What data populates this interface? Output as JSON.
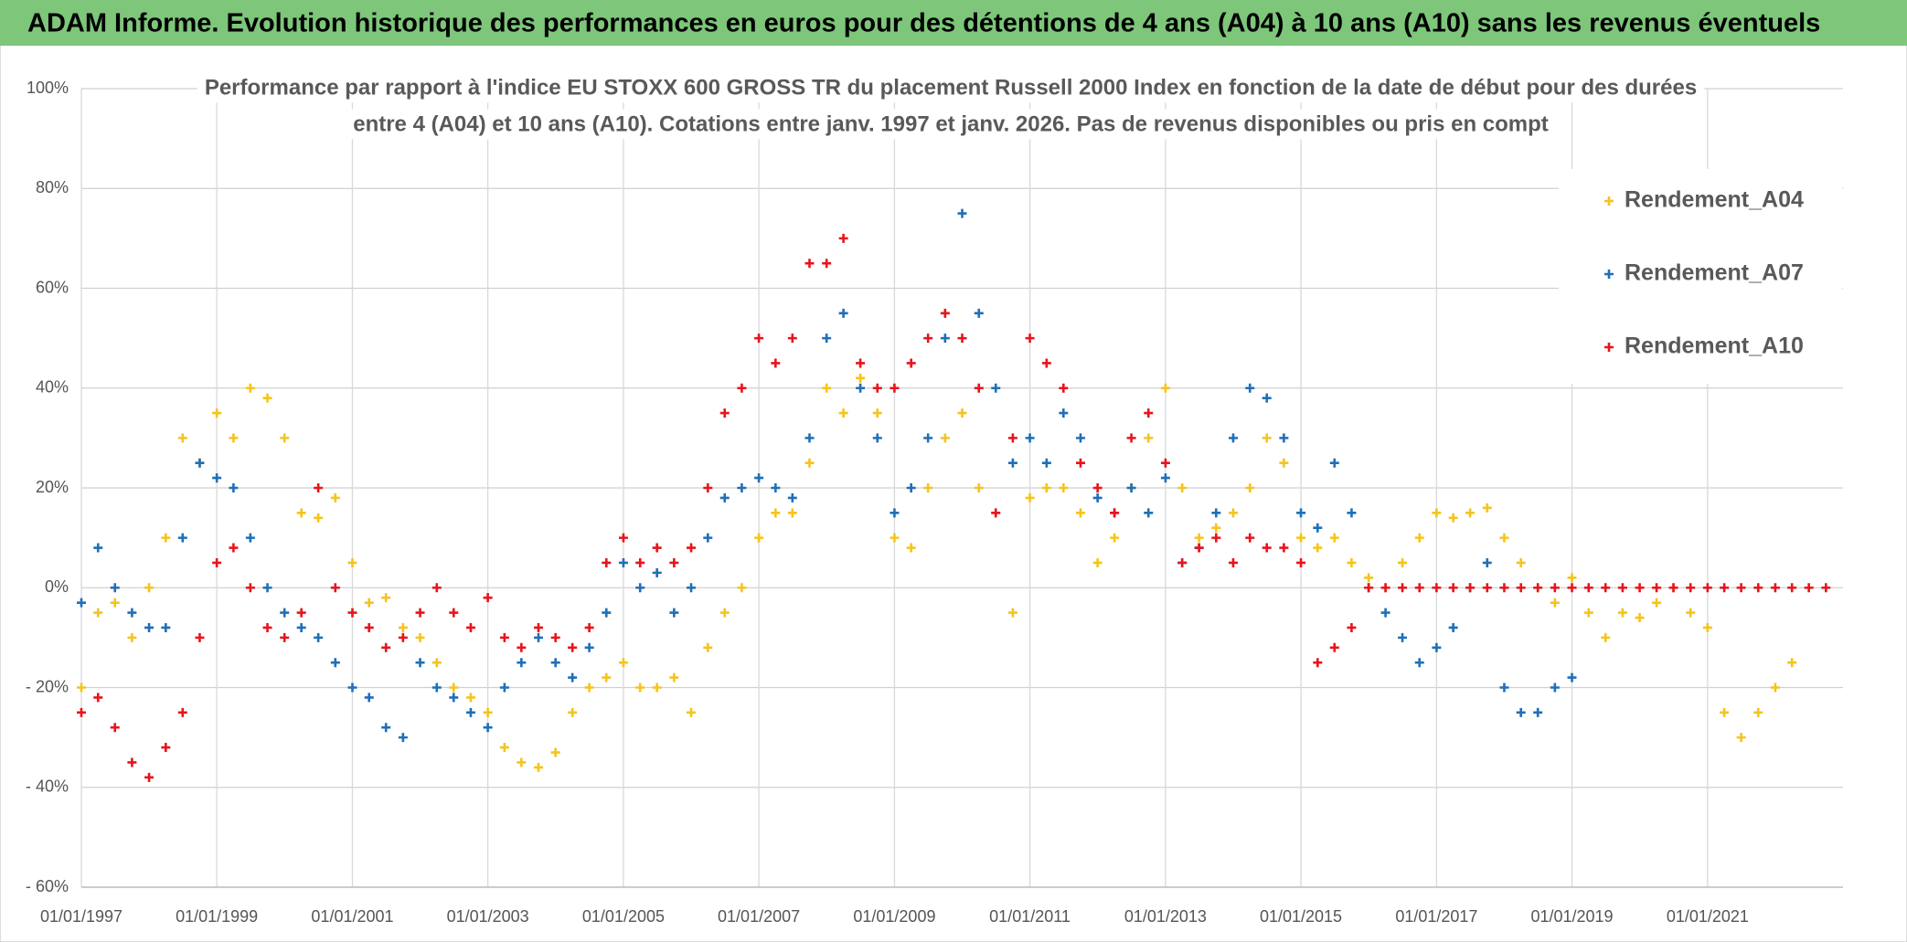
{
  "chart_data": {
    "type": "scatter",
    "title": "ADAM Informe. Evolution historique des performances en euros pour des détentions de 4 ans (A04) à 10 ans (A10) sans les revenus éventuels",
    "subtitle": [
      "Performance par rapport à l'indice EU STOXX 600 GROSS TR  du placement Russell 2000 Index en fonction de la date de début pour des durées",
      "entre 4 (A04) et 10 ans (A10). Cotations entre janv. 1997 et janv. 2026. Pas de revenus disponibles ou pris en compt"
    ],
    "x": [
      "1997-01-01",
      "1997-04-01",
      "1997-07-01",
      "1997-10-01",
      "1998-01-01",
      "1998-04-01",
      "1998-07-01",
      "1998-10-01",
      "1999-01-01",
      "1999-04-01",
      "1999-07-01",
      "1999-10-01",
      "2000-01-01",
      "2000-04-01",
      "2000-07-01",
      "2000-10-01",
      "2001-01-01",
      "2001-04-01",
      "2001-07-01",
      "2001-10-01",
      "2002-01-01",
      "2002-04-01",
      "2002-07-01",
      "2002-10-01",
      "2003-01-01",
      "2003-04-01",
      "2003-07-01",
      "2003-10-01",
      "2004-01-01",
      "2004-04-01",
      "2004-07-01",
      "2004-10-01",
      "2005-01-01",
      "2005-04-01",
      "2005-07-01",
      "2005-10-01",
      "2006-01-01",
      "2006-04-01",
      "2006-07-01",
      "2006-10-01",
      "2007-01-01",
      "2007-04-01",
      "2007-07-01",
      "2007-10-01",
      "2008-01-01",
      "2008-04-01",
      "2008-07-01",
      "2008-10-01",
      "2009-01-01",
      "2009-04-01",
      "2009-07-01",
      "2009-10-01",
      "2010-01-01",
      "2010-04-01",
      "2010-07-01",
      "2010-10-01",
      "2011-01-01",
      "2011-04-01",
      "2011-07-01",
      "2011-10-01",
      "2012-01-01",
      "2012-04-01",
      "2012-07-01",
      "2012-10-01",
      "2013-01-01",
      "2013-04-01",
      "2013-07-01",
      "2013-10-01",
      "2014-01-01",
      "2014-04-01",
      "2014-07-01",
      "2014-10-01",
      "2015-01-01",
      "2015-04-01",
      "2015-07-01",
      "2015-10-01",
      "2016-01-01",
      "2016-04-01",
      "2016-07-01",
      "2016-10-01",
      "2017-01-01",
      "2017-04-01",
      "2017-07-01",
      "2017-10-01",
      "2018-01-01",
      "2018-04-01",
      "2018-07-01",
      "2018-10-01",
      "2019-01-01",
      "2019-04-01",
      "2019-07-01",
      "2019-10-01",
      "2020-01-01",
      "2020-04-01",
      "2020-07-01",
      "2020-10-01",
      "2021-01-01",
      "2021-04-01",
      "2021-07-01",
      "2021-10-01",
      "2022-01-01",
      "2022-04-01",
      "2022-07-01",
      "2022-10-01"
    ],
    "series": [
      {
        "name": "Rendement_A04",
        "color": "#f5c41c",
        "values": [
          -20,
          -5,
          -3,
          -10,
          0,
          10,
          30,
          25,
          35,
          30,
          40,
          38,
          30,
          15,
          14,
          18,
          5,
          -3,
          -2,
          -8,
          -10,
          -15,
          -20,
          -22,
          -25,
          -32,
          -35,
          -36,
          -33,
          -25,
          -20,
          -18,
          -15,
          -20,
          -20,
          -18,
          -25,
          -12,
          -5,
          0,
          10,
          15,
          15,
          25,
          40,
          35,
          42,
          35,
          10,
          8,
          20,
          30,
          35,
          20,
          15,
          -5,
          18,
          20,
          20,
          15,
          5,
          10,
          20,
          30,
          40,
          20,
          10,
          12,
          15,
          20,
          30,
          25,
          10,
          8,
          10,
          5,
          2,
          0,
          5,
          10,
          15,
          14,
          15,
          16,
          10,
          5,
          0,
          -3,
          2,
          -5,
          -10,
          -5,
          -6,
          -3,
          0,
          -5,
          -8,
          -25,
          -30,
          -25,
          -20,
          -15,
          null,
          null
        ]
      },
      {
        "name": "Rendement_A07",
        "color": "#1f6fb8",
        "values": [
          -3,
          8,
          0,
          -5,
          -8,
          -8,
          10,
          25,
          22,
          20,
          10,
          0,
          -5,
          -8,
          -10,
          -15,
          -20,
          -22,
          -28,
          -30,
          -15,
          -20,
          -22,
          -25,
          -28,
          -20,
          -15,
          -10,
          -15,
          -18,
          -12,
          -5,
          5,
          0,
          3,
          -5,
          0,
          10,
          18,
          20,
          22,
          20,
          18,
          30,
          50,
          55,
          40,
          30,
          15,
          20,
          30,
          50,
          75,
          55,
          40,
          25,
          30,
          25,
          35,
          30,
          18,
          15,
          20,
          15,
          22,
          5,
          8,
          15,
          30,
          40,
          38,
          30,
          15,
          12,
          25,
          15,
          0,
          -5,
          -10,
          -15,
          -12,
          -8,
          0,
          5,
          -20,
          -25,
          -25,
          -20,
          -18,
          null,
          null,
          null,
          null,
          null,
          null,
          null,
          null,
          null,
          null,
          null,
          null,
          null,
          null,
          null
        ]
      },
      {
        "name": "Rendement_A10",
        "color": "#e8141c",
        "values": [
          -25,
          -22,
          -28,
          -35,
          -38,
          -32,
          -25,
          -10,
          5,
          8,
          0,
          -8,
          -10,
          -5,
          20,
          0,
          -5,
          -8,
          -12,
          -10,
          -5,
          0,
          -5,
          -8,
          -2,
          -10,
          -12,
          -8,
          -10,
          -12,
          -8,
          5,
          10,
          5,
          8,
          5,
          8,
          20,
          35,
          40,
          50,
          45,
          50,
          65,
          65,
          70,
          45,
          40,
          40,
          45,
          50,
          55,
          50,
          40,
          15,
          30,
          50,
          45,
          40,
          25,
          20,
          15,
          30,
          35,
          25,
          5,
          8,
          10,
          5,
          10,
          8,
          8,
          5,
          -15,
          -12,
          -8,
          0,
          0,
          0,
          0,
          0,
          0,
          0,
          0,
          0,
          0,
          0,
          0,
          0,
          0,
          0,
          0,
          0,
          0,
          0,
          0,
          0,
          0,
          0,
          0,
          0,
          0,
          0,
          0
        ]
      }
    ],
    "xlim": [
      "1997-01-01",
      "2023-01-01"
    ],
    "xticks": [
      {
        "value": "1997-01-01",
        "label": "01/01/1997"
      },
      {
        "value": "1999-01-01",
        "label": "01/01/1999"
      },
      {
        "value": "2001-01-01",
        "label": "01/01/2001"
      },
      {
        "value": "2003-01-01",
        "label": "01/01/2003"
      },
      {
        "value": "2005-01-01",
        "label": "01/01/2005"
      },
      {
        "value": "2007-01-01",
        "label": "01/01/2007"
      },
      {
        "value": "2009-01-01",
        "label": "01/01/2009"
      },
      {
        "value": "2011-01-01",
        "label": "01/01/2011"
      },
      {
        "value": "2013-01-01",
        "label": "01/01/2013"
      },
      {
        "value": "2015-01-01",
        "label": "01/01/2015"
      },
      {
        "value": "2017-01-01",
        "label": "01/01/2017"
      },
      {
        "value": "2019-01-01",
        "label": "01/01/2019"
      },
      {
        "value": "2021-01-01",
        "label": "01/01/2021"
      }
    ],
    "ylim": [
      -60,
      100
    ],
    "yticks": [
      {
        "value": -60,
        "label": "- 60%"
      },
      {
        "value": -40,
        "label": "- 40%"
      },
      {
        "value": -20,
        "label": "- 20%"
      },
      {
        "value": 0,
        "label": "0%"
      },
      {
        "value": 20,
        "label": "20%"
      },
      {
        "value": 40,
        "label": "40%"
      },
      {
        "value": 60,
        "label": "60%"
      },
      {
        "value": 80,
        "label": "80%"
      },
      {
        "value": 100,
        "label": "100%"
      }
    ],
    "grid": true,
    "legend": "top-right"
  }
}
